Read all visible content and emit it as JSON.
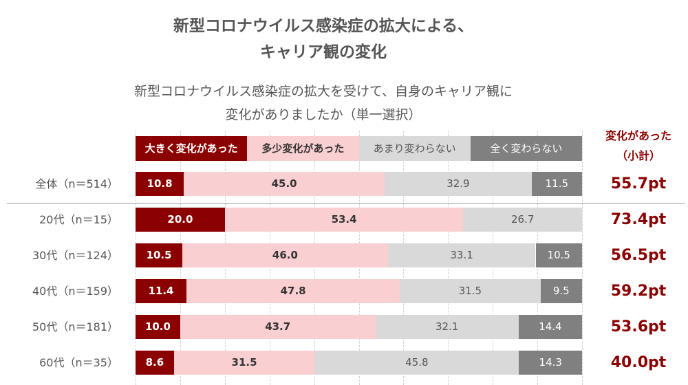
{
  "title_lines": [
    "新型コロナウイルス感染症の拡大による、",
    "キャリア観の変化"
  ],
  "subtitle_lines": [
    "新型コロナウイルス感染症の拡大を受けて、自身のキャリア観に",
    "変化がありましたか（単一選択）"
  ],
  "right_header_lines": [
    "変化があった",
    "（小計）"
  ],
  "colors": {
    "big_change": "#8b0000",
    "small_change": "#f9cfd1",
    "not_much": "#d9d9d9",
    "none": "#808080"
  },
  "chart_data": {
    "type": "bar",
    "stacked": true,
    "orientation": "horizontal",
    "title": "新型コロナウイルス感染症の拡大による、キャリア観の変化",
    "subtitle": "新型コロナウイルス感染症の拡大を受けて、自身のキャリア観に変化がありましたか（単一選択）",
    "xlim": [
      0,
      100
    ],
    "categories": [
      "全体（n＝514）",
      "20代（n＝15）",
      "30代（n＝124）",
      "40代（n＝159）",
      "50代（n＝181）",
      "60代（n＝35）"
    ],
    "series": [
      {
        "name": "大きく変化があった",
        "values": [
          10.8,
          20.0,
          10.5,
          11.4,
          10.0,
          8.6
        ]
      },
      {
        "name": "多少変化があった",
        "values": [
          45.0,
          53.4,
          46.0,
          47.8,
          43.7,
          31.5
        ]
      },
      {
        "name": "あまり変わらない",
        "values": [
          32.9,
          26.7,
          33.1,
          31.5,
          32.1,
          45.8
        ]
      },
      {
        "name": "全く変わらない",
        "values": [
          11.5,
          null,
          10.5,
          9.5,
          14.4,
          14.3
        ]
      }
    ],
    "subtotal_labels": [
      "55.7pt",
      "73.4pt",
      "56.5pt",
      "59.2pt",
      "53.6pt",
      "40.0pt"
    ]
  }
}
